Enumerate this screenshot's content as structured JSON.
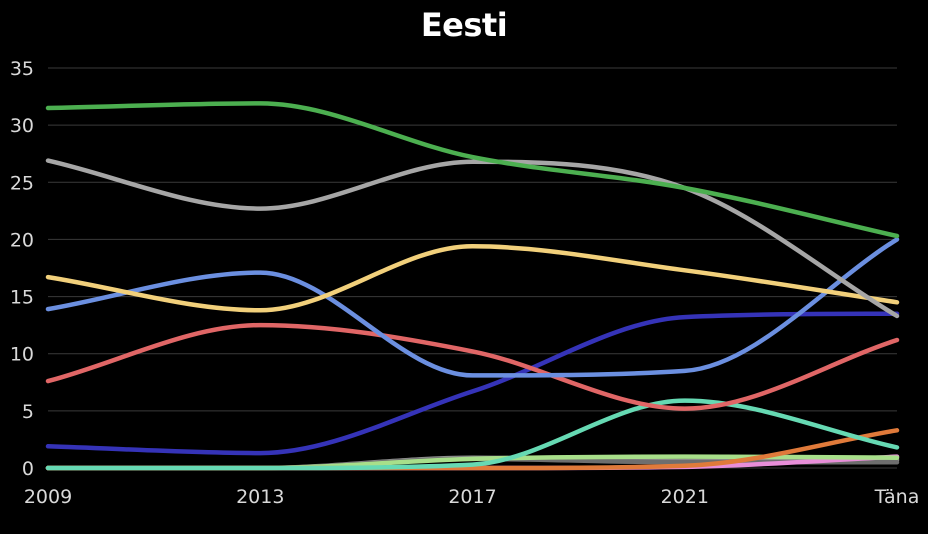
{
  "chart_data": {
    "type": "line",
    "title": "Eesti",
    "xlabel": "",
    "ylabel": "",
    "x_ticks": [
      "2009",
      "2013",
      "2017",
      "2021",
      "Täna"
    ],
    "y_ticks": [
      0,
      5,
      10,
      15,
      20,
      25,
      30,
      35
    ],
    "ylim": [
      0,
      35
    ],
    "grid": true,
    "legend": "none",
    "series": [
      {
        "color": "#4caf50",
        "points": [
          [
            0,
            31.5
          ],
          [
            1,
            31.9
          ],
          [
            2,
            27.2
          ],
          [
            3,
            24.5
          ],
          [
            4,
            20.3
          ]
        ]
      },
      {
        "color": "#a6a6a6",
        "points": [
          [
            0,
            26.9
          ],
          [
            1,
            22.7
          ],
          [
            2,
            26.8
          ],
          [
            3,
            24.5
          ],
          [
            4,
            13.3
          ]
        ]
      },
      {
        "color": "#f2d07b",
        "points": [
          [
            0,
            16.7
          ],
          [
            1,
            13.8
          ],
          [
            2,
            19.4
          ],
          [
            3,
            17.3
          ],
          [
            4,
            14.5
          ]
        ]
      },
      {
        "color": "#6b8fe0",
        "points": [
          [
            0,
            13.9
          ],
          [
            1,
            17.1
          ],
          [
            2,
            8.1
          ],
          [
            3,
            8.5
          ],
          [
            4,
            20.0
          ]
        ]
      },
      {
        "color": "#e06666",
        "points": [
          [
            0,
            7.6
          ],
          [
            1,
            12.5
          ],
          [
            2,
            10.2
          ],
          [
            3,
            5.2
          ],
          [
            4,
            11.2
          ]
        ]
      },
      {
        "color": "#3533b8",
        "points": [
          [
            0,
            1.9
          ],
          [
            1,
            1.3
          ],
          [
            2,
            6.7
          ],
          [
            3,
            13.2
          ],
          [
            4,
            13.5
          ]
        ]
      },
      {
        "color": "#66d9b3",
        "points": [
          [
            0,
            0
          ],
          [
            1,
            0
          ],
          [
            2,
            0.3
          ],
          [
            3,
            5.9
          ],
          [
            4,
            1.8
          ]
        ]
      },
      {
        "color": "#e07a3a",
        "points": [
          [
            0,
            0
          ],
          [
            1,
            0
          ],
          [
            2,
            0
          ],
          [
            3,
            0.2
          ],
          [
            4,
            3.3
          ]
        ]
      },
      {
        "color": "#a8df8a",
        "points": [
          [
            0,
            0
          ],
          [
            1,
            0
          ],
          [
            2,
            0.8
          ],
          [
            3,
            1.0
          ],
          [
            4,
            0.9
          ]
        ]
      },
      {
        "color": "#e88ed9",
        "points": [
          [
            0,
            0
          ],
          [
            1,
            0
          ],
          [
            2,
            0
          ],
          [
            3,
            0.1
          ],
          [
            4,
            1.0
          ]
        ]
      },
      {
        "color": "#6e6e6e",
        "points": [
          [
            0,
            0
          ],
          [
            1,
            0
          ],
          [
            2,
            0.8
          ],
          [
            3,
            0.5
          ],
          [
            4,
            0.5
          ]
        ]
      },
      {
        "color": "#8c8c8c",
        "points": [
          [
            0,
            0
          ],
          [
            1,
            0
          ],
          [
            2,
            0.9
          ],
          [
            3,
            0.6
          ],
          [
            4,
            0.7
          ]
        ]
      }
    ]
  }
}
